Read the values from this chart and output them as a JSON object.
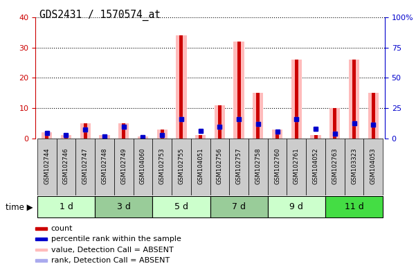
{
  "title": "GDS2431 / 1570574_at",
  "samples": [
    "GSM102744",
    "GSM102746",
    "GSM102747",
    "GSM102748",
    "GSM102749",
    "GSM104060",
    "GSM102753",
    "GSM102755",
    "GSM104051",
    "GSM102756",
    "GSM102757",
    "GSM102758",
    "GSM102760",
    "GSM102761",
    "GSM104052",
    "GSM102763",
    "GSM103323",
    "GSM104053"
  ],
  "groups": [
    {
      "label": "1 d",
      "indices": [
        0,
        1,
        2
      ],
      "color": "#ccffcc"
    },
    {
      "label": "3 d",
      "indices": [
        3,
        4,
        5
      ],
      "color": "#99cc99"
    },
    {
      "label": "5 d",
      "indices": [
        6,
        7,
        8
      ],
      "color": "#ccffcc"
    },
    {
      "label": "7 d",
      "indices": [
        9,
        10,
        11
      ],
      "color": "#99cc99"
    },
    {
      "label": "9 d",
      "indices": [
        12,
        13,
        14
      ],
      "color": "#ccffcc"
    },
    {
      "label": "11 d",
      "indices": [
        15,
        16,
        17
      ],
      "color": "#44dd44"
    }
  ],
  "count_values": [
    2,
    1,
    5,
    1,
    5,
    0.5,
    3,
    34,
    1,
    11,
    32,
    15,
    3,
    26,
    1,
    10,
    26,
    15
  ],
  "percentile_values": [
    4.5,
    2.7,
    7.0,
    1.5,
    9.8,
    0.7,
    2.8,
    16,
    6,
    9.5,
    16,
    12,
    5.5,
    16,
    8,
    4,
    12.5,
    11
  ],
  "absent_value_values": [
    2,
    1,
    5,
    1,
    5,
    0.5,
    3,
    34,
    1,
    11,
    32,
    15,
    3,
    26,
    1,
    10,
    26,
    15
  ],
  "absent_rank_values": [
    4.5,
    2.7,
    7.0,
    1.5,
    9.8,
    0.7,
    2.8,
    16,
    6,
    9.5,
    16,
    12,
    5.5,
    16,
    8,
    4,
    12.5,
    11
  ],
  "ylim_left": [
    0,
    40
  ],
  "ylim_right": [
    0,
    100
  ],
  "yticks_left": [
    0,
    10,
    20,
    30,
    40
  ],
  "yticks_right": [
    0,
    25,
    50,
    75,
    100
  ],
  "ytick_labels_right": [
    "0",
    "25",
    "50",
    "75",
    "100%"
  ],
  "left_tick_color": "#cc0000",
  "right_tick_color": "#0000cc",
  "plot_bg_color": "#ffffff",
  "count_color": "#cc0000",
  "percentile_color": "#0000cc",
  "absent_value_color": "#ffbbbb",
  "absent_rank_color": "#aaaaee",
  "grid_color": "#000000",
  "legend_items": [
    {
      "label": "count",
      "color": "#cc0000"
    },
    {
      "label": "percentile rank within the sample",
      "color": "#0000cc"
    },
    {
      "label": "value, Detection Call = ABSENT",
      "color": "#ffbbbb"
    },
    {
      "label": "rank, Detection Call = ABSENT",
      "color": "#aaaaee"
    }
  ],
  "sample_bg_color": "#cccccc",
  "wide_bar_width": 0.55,
  "narrow_bar_width": 0.18
}
